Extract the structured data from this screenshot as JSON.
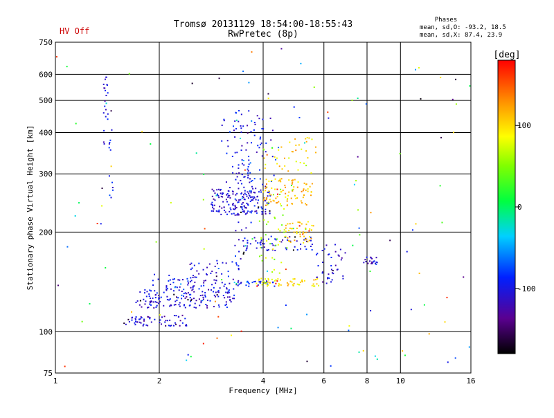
{
  "header": {
    "hv_status": "HV Off",
    "title": "Tromsø 20131129 18:54:00-18:55:43",
    "subtitle": "RwPretec (8p)",
    "phases_title": "Phases",
    "phases_o": "mean, sd,O: -93.2, 18.5",
    "phases_x": "mean, sd,X:  87.4, 23.9"
  },
  "colors": {
    "hv_status": "#cc0000",
    "grid": "#000000"
  },
  "chart_data": {
    "type": "scatter",
    "title": "Tromsø 20131129 18:54:00-18:55:43",
    "subtitle": "RwPretec (8p)",
    "xlabel": "Frequency [MHz]",
    "ylabel": "Stationary phase Virtual Height [km]",
    "x_scale": "log",
    "y_scale": "log",
    "xlim": [
      1,
      16
    ],
    "ylim": [
      75,
      750
    ],
    "x_ticks": [
      1,
      2,
      4,
      6,
      8,
      10,
      16
    ],
    "x_tick_labels": [
      "1",
      "2",
      "4",
      "6",
      "8",
      "10",
      "16"
    ],
    "y_ticks": [
      75,
      100,
      200,
      300,
      400,
      500,
      600,
      750
    ],
    "y_tick_labels": [
      "75",
      "100",
      "200",
      "300",
      "400",
      "500",
      "600",
      "750"
    ],
    "grid": true,
    "colorbar": {
      "label": "[deg]",
      "range": [
        -180,
        180
      ],
      "ticks": [
        100,
        0,
        -100
      ],
      "tick_labels": [
        "100",
        "0",
        "-100"
      ]
    },
    "clusters": [
      {
        "name": "o-trace low",
        "x_range": [
          1.6,
          2.4
        ],
        "y_range": [
          104,
          112
        ],
        "phase": -110,
        "count": 60
      },
      {
        "name": "o-trace E",
        "x_range": [
          1.7,
          3.3
        ],
        "y_range": [
          118,
          135
        ],
        "phase": -105,
        "count": 150
      },
      {
        "name": "o-trace E upper",
        "x_range": [
          1.9,
          2.9
        ],
        "y_range": [
          135,
          150
        ],
        "phase": -100,
        "count": 40
      },
      {
        "name": "o-trace ramp",
        "x_range": [
          2.4,
          3.4
        ],
        "y_range": [
          130,
          165
        ],
        "phase": -100,
        "count": 50
      },
      {
        "name": "o-trace F",
        "x_range": [
          2.8,
          4.2
        ],
        "y_range": [
          225,
          275
        ],
        "phase": -105,
        "count": 170
      },
      {
        "name": "o-trace F spread",
        "x_range": [
          3.0,
          4.3
        ],
        "y_range": [
          270,
          460
        ],
        "phase": -100,
        "count": 70
      },
      {
        "name": "o-trace vertical",
        "x_range": [
          3.3,
          3.7
        ],
        "y_range": [
          150,
          500
        ],
        "phase": -100,
        "count": 60
      },
      {
        "name": "o-trace mid",
        "x_range": [
          3.3,
          5.6
        ],
        "y_range": [
          175,
          195
        ],
        "phase": -100,
        "count": 60
      },
      {
        "name": "o-trace 140",
        "x_range": [
          3.3,
          4.4
        ],
        "y_range": [
          137,
          143
        ],
        "phase": -100,
        "count": 30
      },
      {
        "name": "x-trace F",
        "x_range": [
          4.0,
          5.6
        ],
        "y_range": [
          240,
          290
        ],
        "phase": 110,
        "count": 90
      },
      {
        "name": "x-trace mid",
        "x_range": [
          4.6,
          5.6
        ],
        "y_range": [
          185,
          215
        ],
        "phase": 105,
        "count": 50
      },
      {
        "name": "x-trace 140",
        "x_range": [
          3.8,
          5.8
        ],
        "y_range": [
          137,
          145
        ],
        "phase": 100,
        "count": 60
      },
      {
        "name": "x-trace upper",
        "x_range": [
          4.0,
          5.7
        ],
        "y_range": [
          300,
          390
        ],
        "phase": 100,
        "count": 40
      },
      {
        "name": "mixed 4-5MHz",
        "x_range": [
          3.9,
          4.7
        ],
        "y_range": [
          150,
          260
        ],
        "phase": 60,
        "count": 40
      },
      {
        "name": "o-trace right low",
        "x_range": [
          5.7,
          7.0
        ],
        "y_range": [
          140,
          185
        ],
        "phase": -105,
        "count": 40
      },
      {
        "name": "o-trace 8MHz",
        "x_range": [
          7.8,
          8.6
        ],
        "y_range": [
          160,
          168
        ],
        "phase": -110,
        "count": 20
      },
      {
        "name": "column 1.4MHz",
        "x_range": [
          1.38,
          1.42
        ],
        "y_range": [
          360,
          610
        ],
        "phase": -105,
        "count": 22
      },
      {
        "name": "column 1.45MHz",
        "x_range": [
          1.43,
          1.47
        ],
        "y_range": [
          250,
          420
        ],
        "phase": -90,
        "count": 12
      },
      {
        "name": "sparse noise",
        "x_range": [
          1.0,
          16.0
        ],
        "y_range": [
          78,
          720
        ],
        "phase": 0,
        "count": 130
      }
    ]
  }
}
